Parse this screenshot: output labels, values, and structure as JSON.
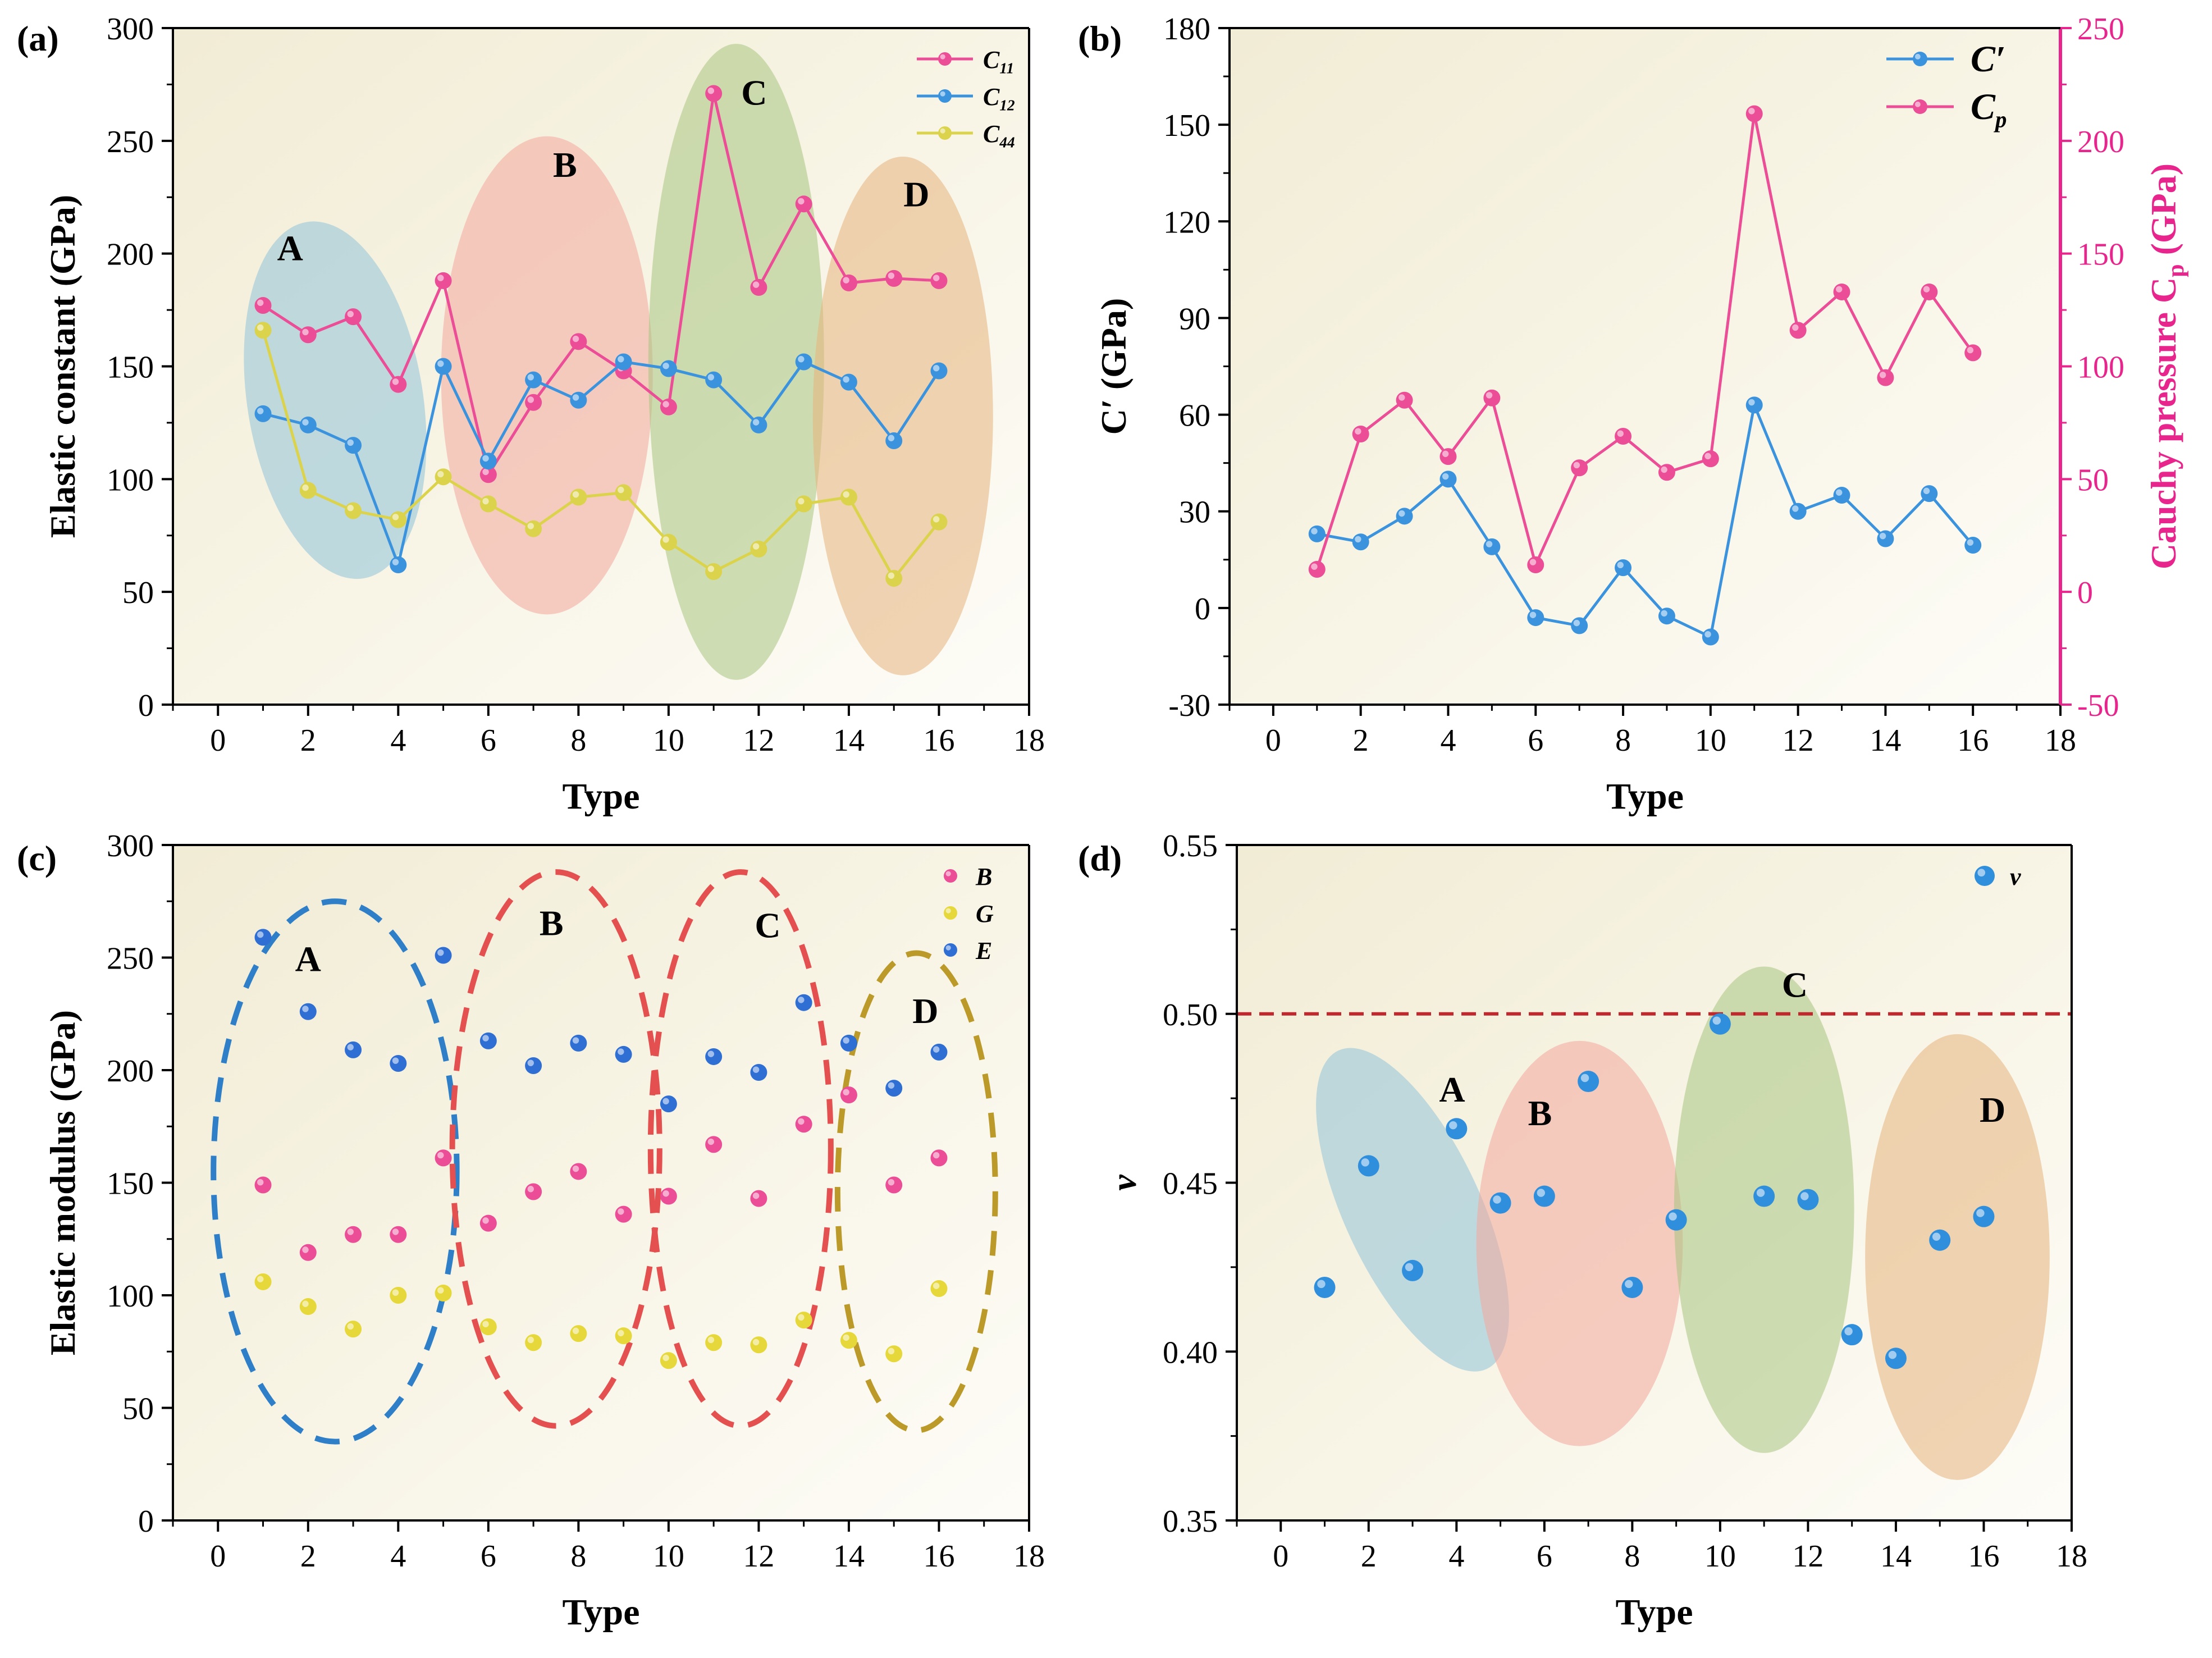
{
  "figure": {
    "type": "multi-panel scientific figure"
  },
  "chart_data": [
    {
      "id": "a",
      "type": "line",
      "panel_label": "(a)",
      "xlabel": "Type",
      "ylabel": "Elastic constant (GPa)",
      "xlim": [
        -1,
        18
      ],
      "ylim": [
        0,
        300
      ],
      "xticks": [
        0,
        2,
        4,
        6,
        8,
        10,
        12,
        14,
        16,
        18
      ],
      "yticks": [
        0,
        50,
        100,
        150,
        200,
        250,
        300
      ],
      "legend": "top-right",
      "x": [
        1,
        2,
        3,
        4,
        5,
        6,
        7,
        8,
        9,
        10,
        11,
        12,
        13,
        14,
        15,
        16
      ],
      "series": [
        {
          "name": "C",
          "sub": "11",
          "color": "#ec4d97",
          "values": [
            177,
            164,
            172,
            142,
            188,
            102,
            134,
            161,
            148,
            132,
            271,
            185,
            222,
            187,
            189,
            188
          ]
        },
        {
          "name": "C",
          "sub": "12",
          "color": "#3b93dd",
          "values": [
            129,
            124,
            115,
            62,
            150,
            108,
            144,
            135,
            152,
            149,
            144,
            124,
            152,
            143,
            117,
            148
          ]
        },
        {
          "name": "C",
          "sub": "44",
          "color": "#dbd34c",
          "values": [
            166,
            95,
            86,
            82,
            101,
            89,
            78,
            92,
            94,
            72,
            59,
            69,
            89,
            92,
            56,
            81
          ]
        }
      ],
      "regions": [
        {
          "label": "A",
          "color": "#8fc2d8"
        },
        {
          "label": "B",
          "color": "#f3a89c"
        },
        {
          "label": "C",
          "color": "#a8c480"
        },
        {
          "label": "D",
          "color": "#e5b27c"
        }
      ]
    },
    {
      "id": "b",
      "type": "line",
      "panel_label": "(b)",
      "xlabel": "Type",
      "ylabel": "C′ (GPa)",
      "y2label": "Cauchy pressure C",
      "y2label_sub": "p",
      "y2label_unit": " (GPa)",
      "xlim": [
        -1,
        18
      ],
      "ylim": [
        -30,
        180
      ],
      "y2lim": [
        -50,
        250
      ],
      "xticks": [
        0,
        2,
        4,
        6,
        8,
        10,
        12,
        14,
        16,
        18
      ],
      "yticks": [
        -30,
        0,
        30,
        60,
        90,
        120,
        150,
        180
      ],
      "y2ticks": [
        -50,
        0,
        50,
        100,
        150,
        200,
        250
      ],
      "legend": "top-right",
      "x": [
        1,
        2,
        3,
        4,
        5,
        6,
        7,
        8,
        9,
        10,
        11,
        12,
        13,
        14,
        15,
        16
      ],
      "series": [
        {
          "name": "C′",
          "sub": "",
          "axis": "left",
          "color": "#3b93dd",
          "values": [
            23,
            20.5,
            28.5,
            40,
            19,
            -3,
            -5.5,
            12.5,
            -2.5,
            -9,
            63,
            30,
            35,
            21.5,
            35.5,
            19.5
          ]
        },
        {
          "name": "C",
          "sub": "p",
          "axis": "right",
          "color": "#ec4d97",
          "values": [
            10,
            70,
            85,
            60,
            86,
            12,
            55,
            69,
            53,
            59,
            212,
            116,
            133,
            95,
            133,
            106
          ]
        }
      ]
    },
    {
      "id": "c",
      "type": "scatter",
      "panel_label": "(c)",
      "xlabel": "Type",
      "ylabel": "Elastic modulus (GPa)",
      "xlim": [
        -1,
        18
      ],
      "ylim": [
        0,
        300
      ],
      "xticks": [
        0,
        2,
        4,
        6,
        8,
        10,
        12,
        14,
        16,
        18
      ],
      "yticks": [
        0,
        50,
        100,
        150,
        200,
        250,
        300
      ],
      "legend": "top-right",
      "x": [
        1,
        2,
        3,
        4,
        5,
        6,
        7,
        8,
        9,
        10,
        11,
        12,
        13,
        14,
        15,
        16
      ],
      "series": [
        {
          "name": "B",
          "color": "#ec4d97",
          "values": [
            149,
            119,
            127,
            127,
            161,
            132,
            146,
            155,
            136,
            144,
            167,
            143,
            176,
            189,
            149,
            161
          ]
        },
        {
          "name": "G",
          "color": "#e6d83a",
          "values": [
            106,
            95,
            85,
            100,
            101,
            86,
            79,
            83,
            82,
            71,
            79,
            78,
            89,
            80,
            74,
            103
          ]
        },
        {
          "name": "E",
          "color": "#2f6fd4",
          "values": [
            259,
            226,
            209,
            203,
            251,
            213,
            202,
            212,
            207,
            185,
            206,
            199,
            230,
            212,
            192,
            208
          ]
        }
      ],
      "regions": [
        {
          "label": "A",
          "color": "#2e7fc8"
        },
        {
          "label": "B",
          "color": "#e45050"
        },
        {
          "label": "C",
          "color": "#e45050"
        },
        {
          "label": "D",
          "color": "#bb9a2a"
        }
      ]
    },
    {
      "id": "d",
      "type": "scatter",
      "panel_label": "(d)",
      "xlabel": "Type",
      "ylabel": "ν",
      "xlim": [
        -1,
        18
      ],
      "ylim": [
        0.35,
        0.55
      ],
      "xticks": [
        0,
        2,
        4,
        6,
        8,
        10,
        12,
        14,
        16,
        18
      ],
      "yticks": [
        0.35,
        0.4,
        0.45,
        0.5,
        0.55
      ],
      "legend": "top-right",
      "reference_line": {
        "y": 0.5,
        "color": "#c0282d"
      },
      "x": [
        1,
        2,
        3,
        4,
        5,
        6,
        7,
        8,
        9,
        10,
        11,
        12,
        13,
        14,
        15,
        16
      ],
      "series": [
        {
          "name": "ν",
          "color": "#2f8fdc",
          "values": [
            0.419,
            0.455,
            0.424,
            0.466,
            0.444,
            0.446,
            0.48,
            0.419,
            0.439,
            0.497,
            0.446,
            0.445,
            0.405,
            0.398,
            0.433,
            0.44
          ]
        }
      ],
      "regions": [
        {
          "label": "A",
          "color": "#8fc2d8"
        },
        {
          "label": "B",
          "color": "#f3a89c"
        },
        {
          "label": "C",
          "color": "#a8c480"
        },
        {
          "label": "D",
          "color": "#e5b27c"
        }
      ]
    }
  ]
}
